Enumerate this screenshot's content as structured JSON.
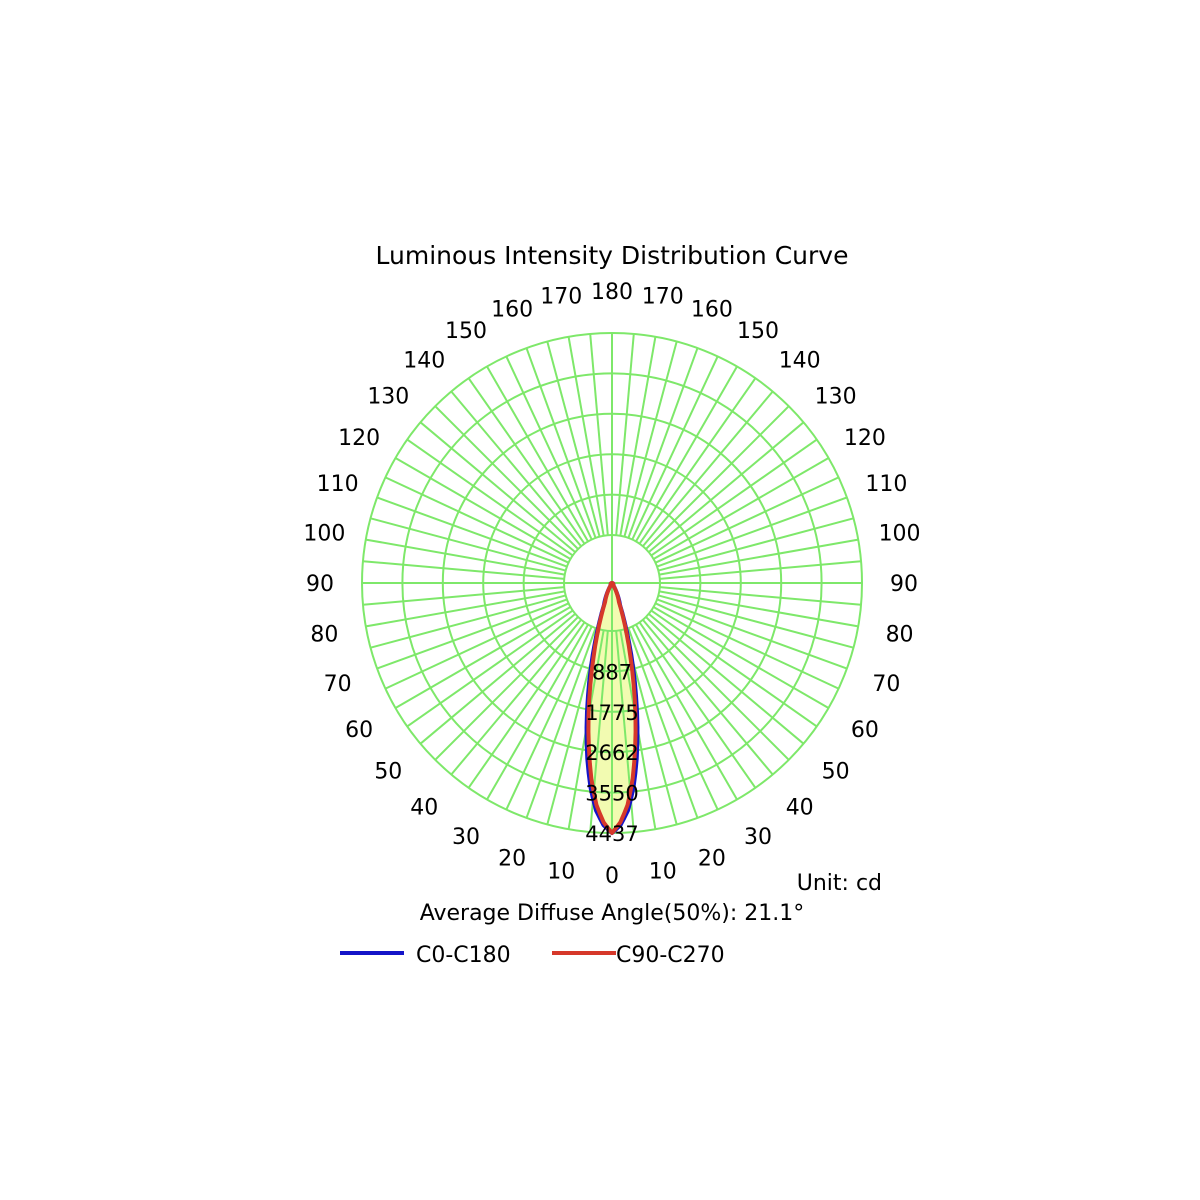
{
  "chart_data": {
    "type": "polar",
    "title": "Luminous Intensity Distribution Curve",
    "unit_label": "Unit: cd",
    "summary": "Average Diffuse Angle(50%): 21.1°",
    "radial_max": 4437,
    "radial_ticks": [
      "887",
      "1775",
      "2662",
      "3550",
      "4437"
    ],
    "angle_ticks_left": [
      "180",
      "170",
      "160",
      "150",
      "140",
      "130",
      "120",
      "110",
      "100",
      "90",
      "80",
      "70",
      "60",
      "50",
      "40",
      "30",
      "20",
      "10",
      "0"
    ],
    "angle_ticks_right": [
      "170",
      "160",
      "150",
      "140",
      "130",
      "120",
      "110",
      "100",
      "90",
      "80",
      "70",
      "60",
      "50",
      "40",
      "30",
      "20",
      "10"
    ],
    "grid": true,
    "grid_color": "#7ee86a",
    "fill_color": "#f2fbb0",
    "series": [
      {
        "name": "C0-C180",
        "color": "#1414c8",
        "angles": [
          0,
          2,
          4,
          6,
          8,
          10,
          12,
          14,
          16,
          18,
          20,
          30,
          90
        ],
        "values": [
          4437,
          4300,
          4050,
          3650,
          3150,
          2600,
          2050,
          1550,
          1100,
          720,
          420,
          50,
          0
        ]
      },
      {
        "name": "C90-C270",
        "color": "#d6382a",
        "angles": [
          0,
          2,
          4,
          6,
          8,
          10,
          12,
          14,
          16,
          18,
          20,
          30,
          90
        ],
        "values": [
          4437,
          4250,
          3950,
          3500,
          2950,
          2400,
          1850,
          1350,
          950,
          620,
          360,
          45,
          0
        ]
      }
    ]
  }
}
